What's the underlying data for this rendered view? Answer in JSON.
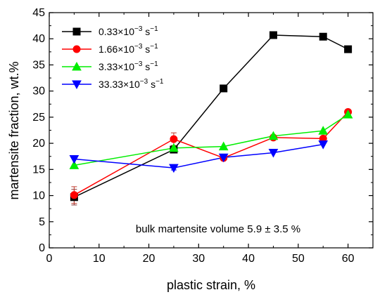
{
  "chart_data": {
    "type": "line",
    "title": "",
    "xlabel": "plastic strain, %",
    "ylabel": "martensite fraction, wt.%",
    "xlim": [
      0,
      65
    ],
    "ylim": [
      0,
      45
    ],
    "xticks": [
      0,
      10,
      20,
      30,
      40,
      50,
      60
    ],
    "yticks": [
      0,
      5,
      10,
      15,
      20,
      25,
      30,
      35,
      40,
      45
    ],
    "grid": false,
    "legend_position": "top-left",
    "annotation": "bulk martensite volume 5.9 ± 3.5 %",
    "series": [
      {
        "name": "0.33×10⁻³ s⁻¹",
        "label_base": "0.33×10",
        "label_exp": "−3",
        "label_unit": " s",
        "label_unit_exp": "−1",
        "color": "#000000",
        "marker": "square",
        "points": [
          [
            5,
            9.7
          ],
          [
            25,
            18.8
          ],
          [
            35,
            30.5
          ],
          [
            45,
            40.7
          ],
          [
            55,
            40.4
          ],
          [
            60,
            38.0
          ]
        ],
        "errors": [
          1.5,
          0.5,
          0,
          0,
          0,
          0
        ]
      },
      {
        "name": "1.66×10⁻³ s⁻¹",
        "label_base": "1.66×10",
        "label_exp": "−3",
        "label_unit": " s",
        "label_unit_exp": "−1",
        "color": "#ff0000",
        "marker": "circle",
        "points": [
          [
            5,
            10.1
          ],
          [
            25,
            20.8
          ],
          [
            35,
            17.2
          ],
          [
            45,
            21.1
          ],
          [
            55,
            20.9
          ],
          [
            60,
            26.0
          ]
        ],
        "errors": [
          1.6,
          1.2,
          0,
          0,
          0,
          0
        ]
      },
      {
        "name": "3.33×10⁻³ s⁻¹",
        "label_base": "3.33×10",
        "label_exp": "−3",
        "label_unit": " s",
        "label_unit_exp": "−1",
        "color": "#00ee00",
        "marker": "triangle-up",
        "points": [
          [
            5,
            15.8
          ],
          [
            25,
            19.1
          ],
          [
            35,
            19.4
          ],
          [
            45,
            21.4
          ],
          [
            55,
            22.4
          ],
          [
            60,
            25.5
          ]
        ],
        "errors": [
          0,
          0.4,
          0,
          0,
          0,
          0
        ]
      },
      {
        "name": "33.33×10⁻³ s⁻¹",
        "label_base": "33.33×10",
        "label_exp": "−3",
        "label_unit": " s",
        "label_unit_exp": "−1",
        "color": "#0000ff",
        "marker": "triangle-down",
        "points": [
          [
            5,
            17.0
          ],
          [
            25,
            15.3
          ],
          [
            35,
            17.3
          ],
          [
            45,
            18.2
          ],
          [
            55,
            19.8
          ]
        ],
        "errors": [
          0,
          0.4,
          0,
          0,
          0
        ]
      }
    ]
  }
}
